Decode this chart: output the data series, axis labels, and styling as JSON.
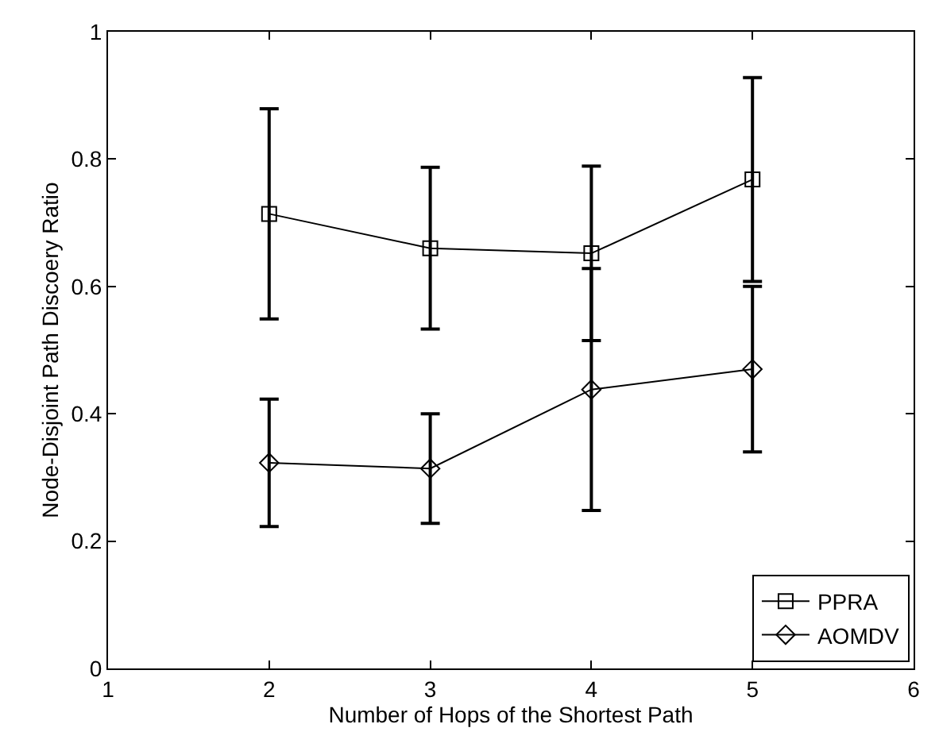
{
  "chart_data": {
    "type": "line",
    "xlabel": "Number of Hops of the Shortest Path",
    "ylabel": "Node-Disjoint Path Discoery Ratio",
    "x": [
      2,
      3,
      4,
      5
    ],
    "series": [
      {
        "name": "PPRA",
        "color": "#000000",
        "marker": "square",
        "values": [
          0.714,
          0.66,
          0.652,
          0.768
        ],
        "errors": [
          0.165,
          0.127,
          0.137,
          0.16
        ]
      },
      {
        "name": "AOMDV",
        "color": "#000000",
        "marker": "diamond",
        "values": [
          0.323,
          0.314,
          0.438,
          0.47
        ],
        "errors": [
          0.1,
          0.086,
          0.19,
          0.13
        ]
      }
    ],
    "xlim": [
      1,
      6
    ],
    "xticks": [
      1,
      2,
      3,
      4,
      5,
      6
    ],
    "ylim": [
      0,
      1
    ],
    "yticks": [
      0,
      0.2,
      0.4,
      0.6,
      0.8,
      1
    ],
    "legend": "bottom right",
    "line_style": "solid"
  }
}
